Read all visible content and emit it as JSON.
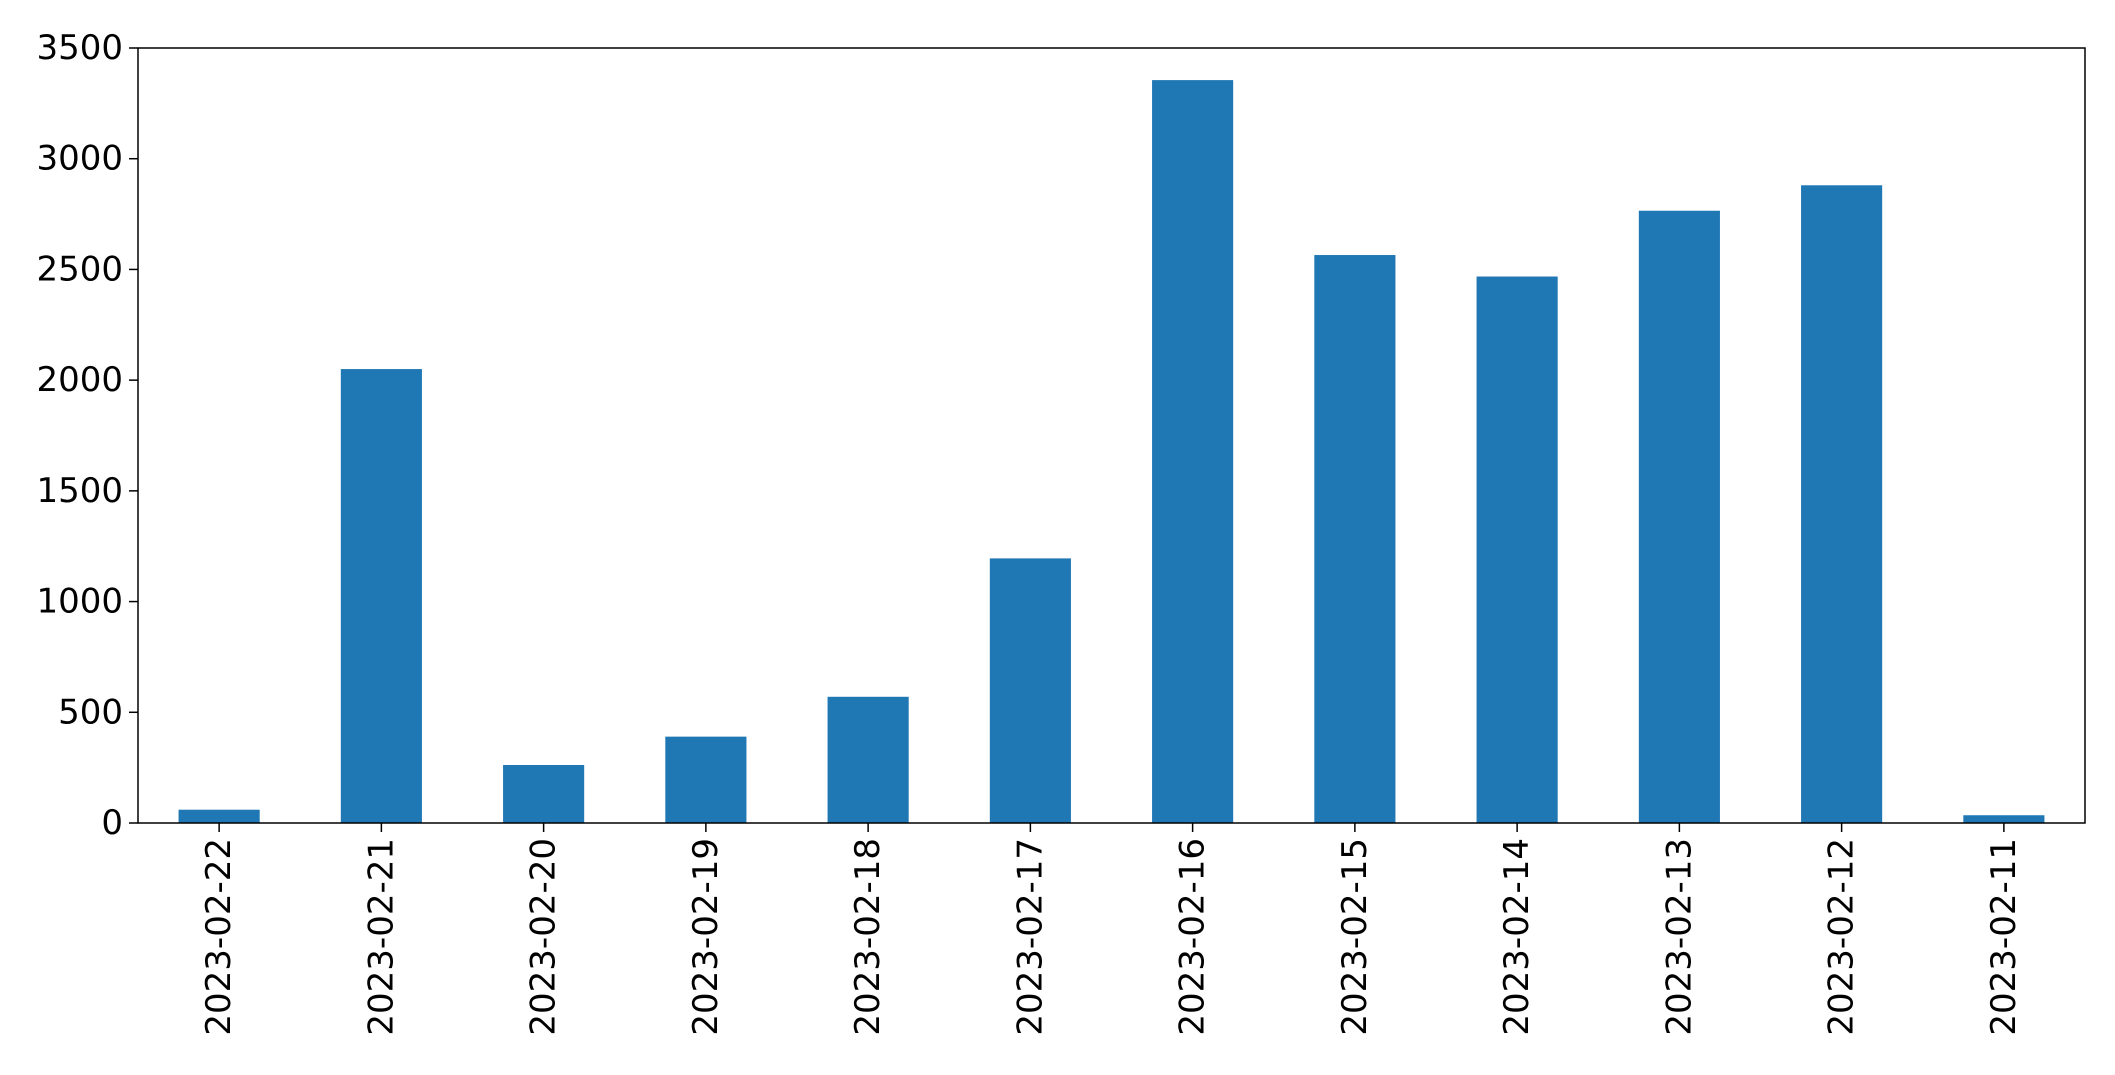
{
  "chart_data": {
    "type": "bar",
    "title": "",
    "xlabel": "",
    "ylabel": "",
    "categories": [
      "2023-02-22",
      "2023-02-21",
      "2023-02-20",
      "2023-02-19",
      "2023-02-18",
      "2023-02-17",
      "2023-02-16",
      "2023-02-15",
      "2023-02-14",
      "2023-02-13",
      "2023-02-12",
      "2023-02-11"
    ],
    "values": [
      60,
      2050,
      262,
      390,
      570,
      1195,
      3355,
      2565,
      2468,
      2765,
      2880,
      35
    ],
    "ylim": [
      0,
      3500
    ],
    "yticks": [
      0,
      500,
      1000,
      1500,
      2000,
      2500,
      3000,
      3500
    ],
    "ytick_labels": [
      "0",
      "500",
      "1000",
      "1500",
      "2000",
      "2500",
      "3000",
      "3500"
    ],
    "bar_color": "#1f77b4",
    "grid": false,
    "legend": "none"
  }
}
